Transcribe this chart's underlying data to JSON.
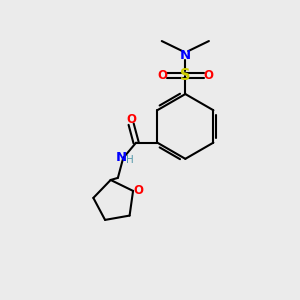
{
  "bg_color": "#ebebeb",
  "bond_color": "#000000",
  "N_color": "#0000ff",
  "O_color": "#ff0000",
  "S_color": "#cccc00",
  "H_color": "#5599aa",
  "line_width": 1.5,
  "font_size": 8.5,
  "figsize": [
    3.0,
    3.0
  ],
  "dpi": 100,
  "xlim": [
    0,
    10
  ],
  "ylim": [
    0,
    10
  ]
}
